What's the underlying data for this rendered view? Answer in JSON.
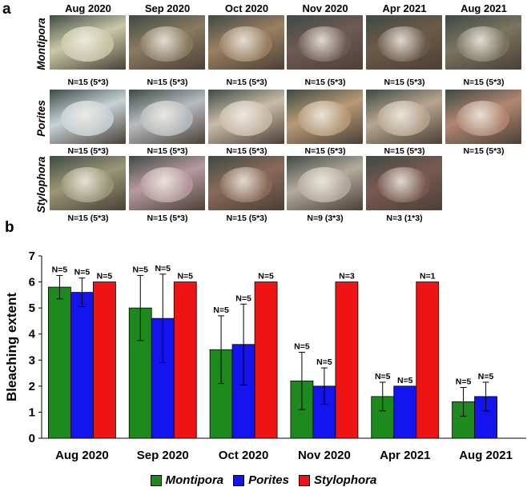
{
  "panel_a": {
    "label": "a",
    "months": [
      "Aug 2020",
      "Sep 2020",
      "Oct 2020",
      "Nov 2020",
      "Apr 2021",
      "Aug 2021"
    ],
    "species": [
      {
        "name": "Montipora",
        "n_labels": [
          "N=15 (5*3)",
          "N=15 (5*3)",
          "N=15 (5*3)",
          "N=15 (5*3)",
          "N=15 (5*3)",
          "N=15 (5*3)"
        ]
      },
      {
        "name": "Porites",
        "n_labels": [
          "N=15 (5*3)",
          "N=15 (5*3)",
          "N=15 (5*3)",
          "N=15 (5*3)",
          "N=15 (5*3)",
          "N=15 (5*3)"
        ]
      },
      {
        "name": "Stylophora",
        "n_labels": [
          "N=15 (5*3)",
          "N=15 (5*3)",
          "N=15 (5*3)",
          "N=9 (3*3)",
          "N=3 (1*3)",
          ""
        ]
      }
    ],
    "photo_colors": {
      "Montipora": [
        "#c9c8a8",
        "#8a7a60",
        "#9c7f62",
        "#6f5a55",
        "#6d5a48",
        "#7a7460"
      ],
      "Porites": [
        "#c8d2d6",
        "#b8bcc0",
        "#c9bca8",
        "#b89a78",
        "#b8a58e",
        "#b28673"
      ],
      "Stylophora": [
        "#9a9676",
        "#b79aa0",
        "#8a6a58",
        "#b5aa9c",
        "#7a5a50",
        ""
      ]
    }
  },
  "chart_data": {
    "label": "b",
    "type": "bar",
    "categories": [
      "Aug 2020",
      "Sep 2020",
      "Oct 2020",
      "Nov 2020",
      "Apr 2021",
      "Aug 2021"
    ],
    "series": [
      {
        "name": "Montipora",
        "color": "#1e8a1e",
        "values": [
          5.8,
          5.0,
          3.4,
          2.2,
          1.6,
          1.4
        ],
        "errors": [
          0.45,
          1.25,
          1.3,
          1.1,
          0.55,
          0.55
        ],
        "n_labels": [
          "N=5",
          "N=5",
          "N=5",
          "N=5",
          "N=5",
          "N=5"
        ]
      },
      {
        "name": "Porites",
        "color": "#1414ee",
        "values": [
          5.6,
          4.6,
          3.6,
          2.0,
          2.0,
          1.6
        ],
        "errors": [
          0.55,
          1.7,
          1.55,
          0.7,
          0.0,
          0.55
        ],
        "n_labels": [
          "N=5",
          "N=5",
          "N=5",
          "N=5",
          "N=5",
          "N=5"
        ]
      },
      {
        "name": "Stylophora",
        "color": "#ee1414",
        "values": [
          6.0,
          6.0,
          6.0,
          6.0,
          6.0,
          null
        ],
        "errors": [
          0,
          0,
          0,
          0,
          0,
          null
        ],
        "n_labels": [
          "N=5",
          "N=5",
          "N=5",
          "N=3",
          "N=1",
          ""
        ]
      }
    ],
    "ylabel": "Bleaching extent",
    "xlabel": "",
    "ylim": [
      0,
      7
    ],
    "yticks": [
      "0",
      "1",
      "2",
      "3",
      "4",
      "5",
      "6",
      "7"
    ],
    "legend": [
      "Montipora",
      "Porites",
      "Stylophora"
    ],
    "legend_position": "bottom-center"
  }
}
